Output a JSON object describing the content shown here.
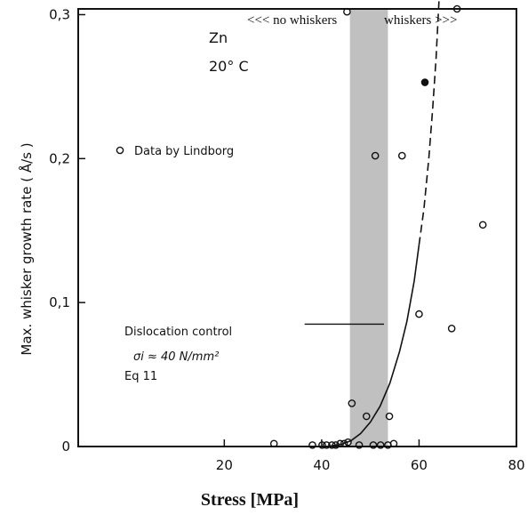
{
  "chart_data": {
    "type": "scatter",
    "xlabel": "Stress [MPa]",
    "ylabel": "Max. whisker growth rate ( Å/s )",
    "xlim": [
      -10,
      80
    ],
    "ylim": [
      0,
      0.304
    ],
    "x_ticks": [
      20,
      40,
      60,
      80
    ],
    "y_ticks": [
      0,
      0.1,
      0.2,
      0.3
    ],
    "x_tick_labels": [
      "20",
      "40",
      "60",
      "80"
    ],
    "y_tick_labels": [
      "0",
      "0,1",
      "0,2",
      "0,3"
    ],
    "grid": false,
    "legend": {
      "label": "Data by Lindborg",
      "marker": "open-circle",
      "placement": "upper-left"
    },
    "annotations": {
      "material": "Zn",
      "temperature": "20° C",
      "no_whiskers": "<<< no whiskers",
      "whiskers": "whiskers >>>",
      "dislocation_title": "Dislocation control",
      "dislocation_formula": "σi ≈ 40 N/mm²",
      "dislocation_eq": "Eq 11"
    },
    "shaded_region": {
      "x_start": 45.8,
      "x_end": 53.6,
      "color": "#c0c0c0"
    },
    "series": [
      {
        "name": "Data by Lindborg",
        "points": [
          {
            "x": 30.2,
            "y": 0.002
          },
          {
            "x": 38.1,
            "y": 0.001
          },
          {
            "x": 40.1,
            "y": 0.001
          },
          {
            "x": 41.0,
            "y": 0.001
          },
          {
            "x": 42.1,
            "y": 0.001
          },
          {
            "x": 42.9,
            "y": 0.001
          },
          {
            "x": 43.8,
            "y": 0.002
          },
          {
            "x": 44.6,
            "y": 0.002
          },
          {
            "x": 45.4,
            "y": 0.003
          },
          {
            "x": 45.2,
            "y": 0.302
          },
          {
            "x": 46.2,
            "y": 0.03
          },
          {
            "x": 47.7,
            "y": 0.001
          },
          {
            "x": 49.2,
            "y": 0.021
          },
          {
            "x": 50.6,
            "y": 0.001
          },
          {
            "x": 51.0,
            "y": 0.202
          },
          {
            "x": 52.1,
            "y": 0.001
          },
          {
            "x": 53.6,
            "y": 0.001
          },
          {
            "x": 53.9,
            "y": 0.021
          },
          {
            "x": 54.8,
            "y": 0.002
          },
          {
            "x": 56.5,
            "y": 0.202
          },
          {
            "x": 60.0,
            "y": 0.092
          },
          {
            "x": 61.2,
            "y": 0.253
          },
          {
            "x": 66.7,
            "y": 0.082
          },
          {
            "x": 67.8,
            "y": 0.304
          },
          {
            "x": 73.1,
            "y": 0.154
          }
        ]
      }
    ],
    "model_curve": {
      "x": [
        41,
        44,
        46,
        48,
        50,
        52,
        54,
        56,
        57.5,
        59,
        60
      ],
      "y": [
        0.0,
        0.0015,
        0.004,
        0.009,
        0.017,
        0.028,
        0.044,
        0.066,
        0.087,
        0.115,
        0.14
      ],
      "dashed_x": [
        60,
        61,
        62,
        62.8,
        63.5,
        64.1
      ],
      "dashed_y": [
        0.14,
        0.165,
        0.2,
        0.235,
        0.27,
        0.31
      ]
    },
    "callout_line": {
      "x_start": 36.5,
      "x_end": 52.8,
      "y": 0.085
    }
  }
}
